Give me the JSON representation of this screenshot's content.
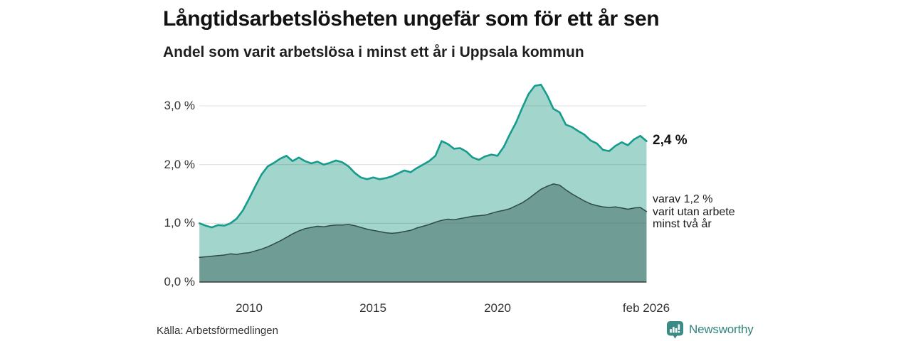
{
  "header": {
    "title": "Långtidsarbetslösheten ungefär som för ett år sen",
    "subtitle": "Andel som varit arbetslösa i minst ett år i Uppsala kommun"
  },
  "annotations": {
    "total_end_value": "2,4 %",
    "note_lines": [
      "varav 1,2 %",
      "varit utan arbete",
      "minst två år"
    ]
  },
  "footer": {
    "source": "Källa: Arbetsförmedlingen",
    "brand_name": "Newsworthy",
    "brand_icon": "bar-chart-speech-bubble-icon"
  },
  "colors": {
    "total_line": "#169b8d",
    "total_fill": "#a2d5cc",
    "two_year_line": "#2e4a45",
    "two_year_fill": "#6f9d96",
    "gridline": "rgba(70,70,70,0.17)",
    "baseline": "#3a3a3a",
    "brand_teal": "#3a8b85"
  },
  "chart_data": {
    "type": "area",
    "title": "Långtidsarbetslösheten ungefär som för ett år sen",
    "subtitle": "Andel som varit arbetslösa i minst ett år i Uppsala kommun",
    "xlabel": "",
    "ylabel": "",
    "ylim": [
      0,
      3.5
    ],
    "grid": "horizontal",
    "legend_position": "end-of-line labels (right)",
    "x_start": 2008.0,
    "x_step": 0.25,
    "x_end_label": "feb 2026",
    "yticks": [
      {
        "value": 0,
        "label": "0,0 %"
      },
      {
        "value": 1,
        "label": "1,0 %"
      },
      {
        "value": 2,
        "label": "2,0 %"
      },
      {
        "value": 3,
        "label": "3,0 %"
      }
    ],
    "xticks": [
      {
        "value": 2010,
        "label": "2010"
      },
      {
        "value": 2015,
        "label": "2015"
      },
      {
        "value": 2020,
        "label": "2020"
      },
      {
        "value": 2026,
        "label": "feb 2026"
      }
    ],
    "series": [
      {
        "name": "Andel arbetslösa minst ett år",
        "end_label": "2,4 %",
        "values": [
          1.0,
          0.96,
          0.93,
          0.97,
          0.96,
          1.0,
          1.08,
          1.22,
          1.42,
          1.63,
          1.83,
          1.97,
          2.03,
          2.1,
          2.15,
          2.06,
          2.12,
          2.06,
          2.02,
          2.05,
          2.0,
          2.03,
          2.07,
          2.04,
          1.97,
          1.86,
          1.78,
          1.75,
          1.78,
          1.75,
          1.77,
          1.8,
          1.85,
          1.9,
          1.87,
          1.94,
          2.0,
          2.06,
          2.15,
          2.4,
          2.35,
          2.27,
          2.28,
          2.22,
          2.12,
          2.08,
          2.14,
          2.17,
          2.15,
          2.3,
          2.52,
          2.72,
          2.97,
          3.2,
          3.34,
          3.36,
          3.18,
          2.95,
          2.89,
          2.68,
          2.64,
          2.57,
          2.51,
          2.41,
          2.36,
          2.25,
          2.23,
          2.32,
          2.38,
          2.33,
          2.43,
          2.49,
          2.4
        ]
      },
      {
        "name": "varav utan arbete minst två år",
        "end_label": "1,2 %",
        "values": [
          0.42,
          0.43,
          0.44,
          0.45,
          0.46,
          0.48,
          0.47,
          0.49,
          0.5,
          0.53,
          0.56,
          0.6,
          0.65,
          0.7,
          0.76,
          0.82,
          0.87,
          0.91,
          0.93,
          0.95,
          0.94,
          0.96,
          0.97,
          0.97,
          0.98,
          0.96,
          0.93,
          0.9,
          0.88,
          0.86,
          0.84,
          0.83,
          0.84,
          0.86,
          0.88,
          0.92,
          0.95,
          0.98,
          1.02,
          1.05,
          1.07,
          1.06,
          1.08,
          1.1,
          1.12,
          1.13,
          1.14,
          1.17,
          1.2,
          1.22,
          1.25,
          1.3,
          1.35,
          1.42,
          1.5,
          1.58,
          1.63,
          1.67,
          1.65,
          1.57,
          1.5,
          1.44,
          1.38,
          1.33,
          1.3,
          1.28,
          1.27,
          1.28,
          1.26,
          1.24,
          1.26,
          1.27,
          1.2
        ]
      }
    ]
  }
}
